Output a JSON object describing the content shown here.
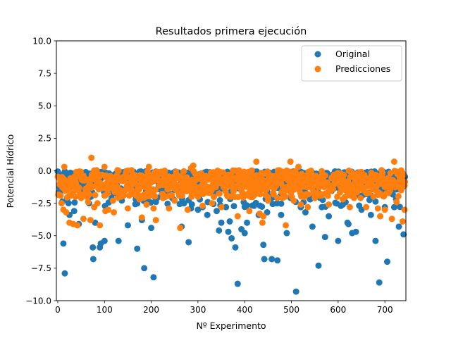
{
  "chart_data": {
    "type": "scatter",
    "title": "Resultados primera ejecución",
    "xlabel": "Nº Experimento",
    "ylabel": "Potencial Hídrico",
    "xlim": [
      -3,
      745
    ],
    "ylim": [
      -10,
      10
    ],
    "xticks": [
      0,
      100,
      200,
      300,
      400,
      500,
      600,
      700
    ],
    "xtick_labels": [
      "0",
      "100",
      "200",
      "300",
      "400",
      "500",
      "600",
      "700"
    ],
    "yticks": [
      10,
      7.5,
      5,
      2.5,
      0,
      -2.5,
      -5,
      -7.5,
      -10
    ],
    "ytick_labels": [
      "10.0",
      "7.5",
      "5.0",
      "2.5",
      "0.0",
      "−2.5",
      "−5.0",
      "−7.5",
      "−10.0"
    ],
    "grid": false,
    "legend_position": "top-right",
    "n_points": 744,
    "series": [
      {
        "name": "Original",
        "color": "#1f77b4",
        "outliers": [
          [
            10,
            -1.5
          ],
          [
            12,
            -5.6
          ],
          [
            15,
            -7.9
          ],
          [
            25,
            -3.4
          ],
          [
            35,
            -3.1
          ],
          [
            45,
            -4.1
          ],
          [
            75,
            -5.9
          ],
          [
            76,
            -6.8
          ],
          [
            80,
            -4.0
          ],
          [
            90,
            -5.9
          ],
          [
            92,
            -5.6
          ],
          [
            100,
            -5.4
          ],
          [
            130,
            -5.4
          ],
          [
            150,
            -4.2
          ],
          [
            170,
            -6.0
          ],
          [
            180,
            -3.8
          ],
          [
            185,
            -7.5
          ],
          [
            200,
            -4.4
          ],
          [
            205,
            -8.2
          ],
          [
            210,
            -2.4
          ],
          [
            265,
            -4.3
          ],
          [
            280,
            -5.5
          ],
          [
            285,
            -2.9
          ],
          [
            300,
            -3.0
          ],
          [
            310,
            -2.8
          ],
          [
            320,
            -3.4
          ],
          [
            340,
            -3.1
          ],
          [
            345,
            -4.6
          ],
          [
            350,
            -4.0
          ],
          [
            360,
            -2.8
          ],
          [
            365,
            -4.7
          ],
          [
            368,
            -3.9
          ],
          [
            372,
            -5.2
          ],
          [
            380,
            -5.9
          ],
          [
            385,
            -8.7
          ],
          [
            393,
            -4.5
          ],
          [
            400,
            -4.8
          ],
          [
            405,
            -4.0
          ],
          [
            420,
            -2.7
          ],
          [
            430,
            -3.4
          ],
          [
            440,
            -5.7
          ],
          [
            442,
            -6.8
          ],
          [
            448,
            -3.2
          ],
          [
            458,
            -6.8
          ],
          [
            470,
            -6.9
          ],
          [
            478,
            -3.4
          ],
          [
            490,
            -4.8
          ],
          [
            510,
            -9.3
          ],
          [
            520,
            -2.8
          ],
          [
            530,
            -3.2
          ],
          [
            540,
            -2.2
          ],
          [
            545,
            -4.3
          ],
          [
            558,
            -7.3
          ],
          [
            565,
            -2.8
          ],
          [
            572,
            -5.1
          ],
          [
            580,
            -3.5
          ],
          [
            600,
            -5.4
          ],
          [
            610,
            -2.6
          ],
          [
            620,
            -4.0
          ],
          [
            622,
            -4.1
          ],
          [
            630,
            -4.8
          ],
          [
            638,
            -4.7
          ],
          [
            650,
            -3.0
          ],
          [
            670,
            -3.4
          ],
          [
            680,
            -5.4
          ],
          [
            688,
            -8.6
          ],
          [
            700,
            -2.8
          ],
          [
            705,
            -7.0
          ],
          [
            720,
            -2.8
          ],
          [
            730,
            -4.3
          ],
          [
            740,
            -4.9
          ]
        ]
      },
      {
        "name": "Predicciones",
        "color": "#ff7f0e",
        "outliers": [
          [
            8,
            -2.5
          ],
          [
            12,
            -3.0
          ],
          [
            14,
            0.3
          ],
          [
            18,
            -3.2
          ],
          [
            25,
            -4.0
          ],
          [
            33,
            -4.1
          ],
          [
            38,
            -2.0
          ],
          [
            42,
            -4.2
          ],
          [
            50,
            -2.1
          ],
          [
            55,
            -3.7
          ],
          [
            65,
            -2.4
          ],
          [
            70,
            -3.8
          ],
          [
            72,
            1.0
          ],
          [
            78,
            -2.8
          ],
          [
            85,
            -2.5
          ],
          [
            90,
            -4.2
          ],
          [
            100,
            0.3
          ],
          [
            102,
            -3.1
          ],
          [
            108,
            -3.0
          ],
          [
            118,
            -2.3
          ],
          [
            120,
            -3.2
          ],
          [
            128,
            -1.3
          ],
          [
            135,
            -2.0
          ],
          [
            150,
            -2.9
          ],
          [
            160,
            -1.8
          ],
          [
            175,
            -2.2
          ],
          [
            180,
            -3.6
          ],
          [
            190,
            -2.6
          ],
          [
            195,
            0.3
          ],
          [
            205,
            -2.9
          ],
          [
            210,
            -3.8
          ],
          [
            225,
            -2.1
          ],
          [
            238,
            -2.9
          ],
          [
            250,
            -2.3
          ],
          [
            262,
            -4.4
          ],
          [
            278,
            -3.0
          ],
          [
            285,
            0.2
          ],
          [
            290,
            0.4
          ],
          [
            300,
            -2.0
          ],
          [
            310,
            -2.7
          ],
          [
            330,
            -2.5
          ],
          [
            350,
            -2.8
          ],
          [
            370,
            -2.0
          ],
          [
            385,
            -3.5
          ],
          [
            410,
            -3.1
          ],
          [
            425,
            0.7
          ],
          [
            432,
            -3.3
          ],
          [
            438,
            -4.0
          ],
          [
            440,
            -3.5
          ],
          [
            450,
            -2.3
          ],
          [
            470,
            -2.1
          ],
          [
            488,
            -4.2
          ],
          [
            498,
            0.7
          ],
          [
            505,
            -2.3
          ],
          [
            515,
            0.3
          ],
          [
            520,
            -2.6
          ],
          [
            535,
            -2.8
          ],
          [
            550,
            -2.1
          ],
          [
            565,
            -1.9
          ],
          [
            580,
            -2.6
          ],
          [
            598,
            -2.0
          ],
          [
            610,
            -2.2
          ],
          [
            625,
            -2.8
          ],
          [
            648,
            -2.1
          ],
          [
            660,
            -2.8
          ],
          [
            685,
            -2.9
          ],
          [
            690,
            -3.5
          ],
          [
            700,
            -3.0
          ],
          [
            715,
            -3.7
          ],
          [
            720,
            0.7
          ],
          [
            725,
            -2.4
          ],
          [
            735,
            -1.5
          ],
          [
            738,
            -3.9
          ],
          [
            742,
            -3.0
          ]
        ]
      }
    ]
  }
}
